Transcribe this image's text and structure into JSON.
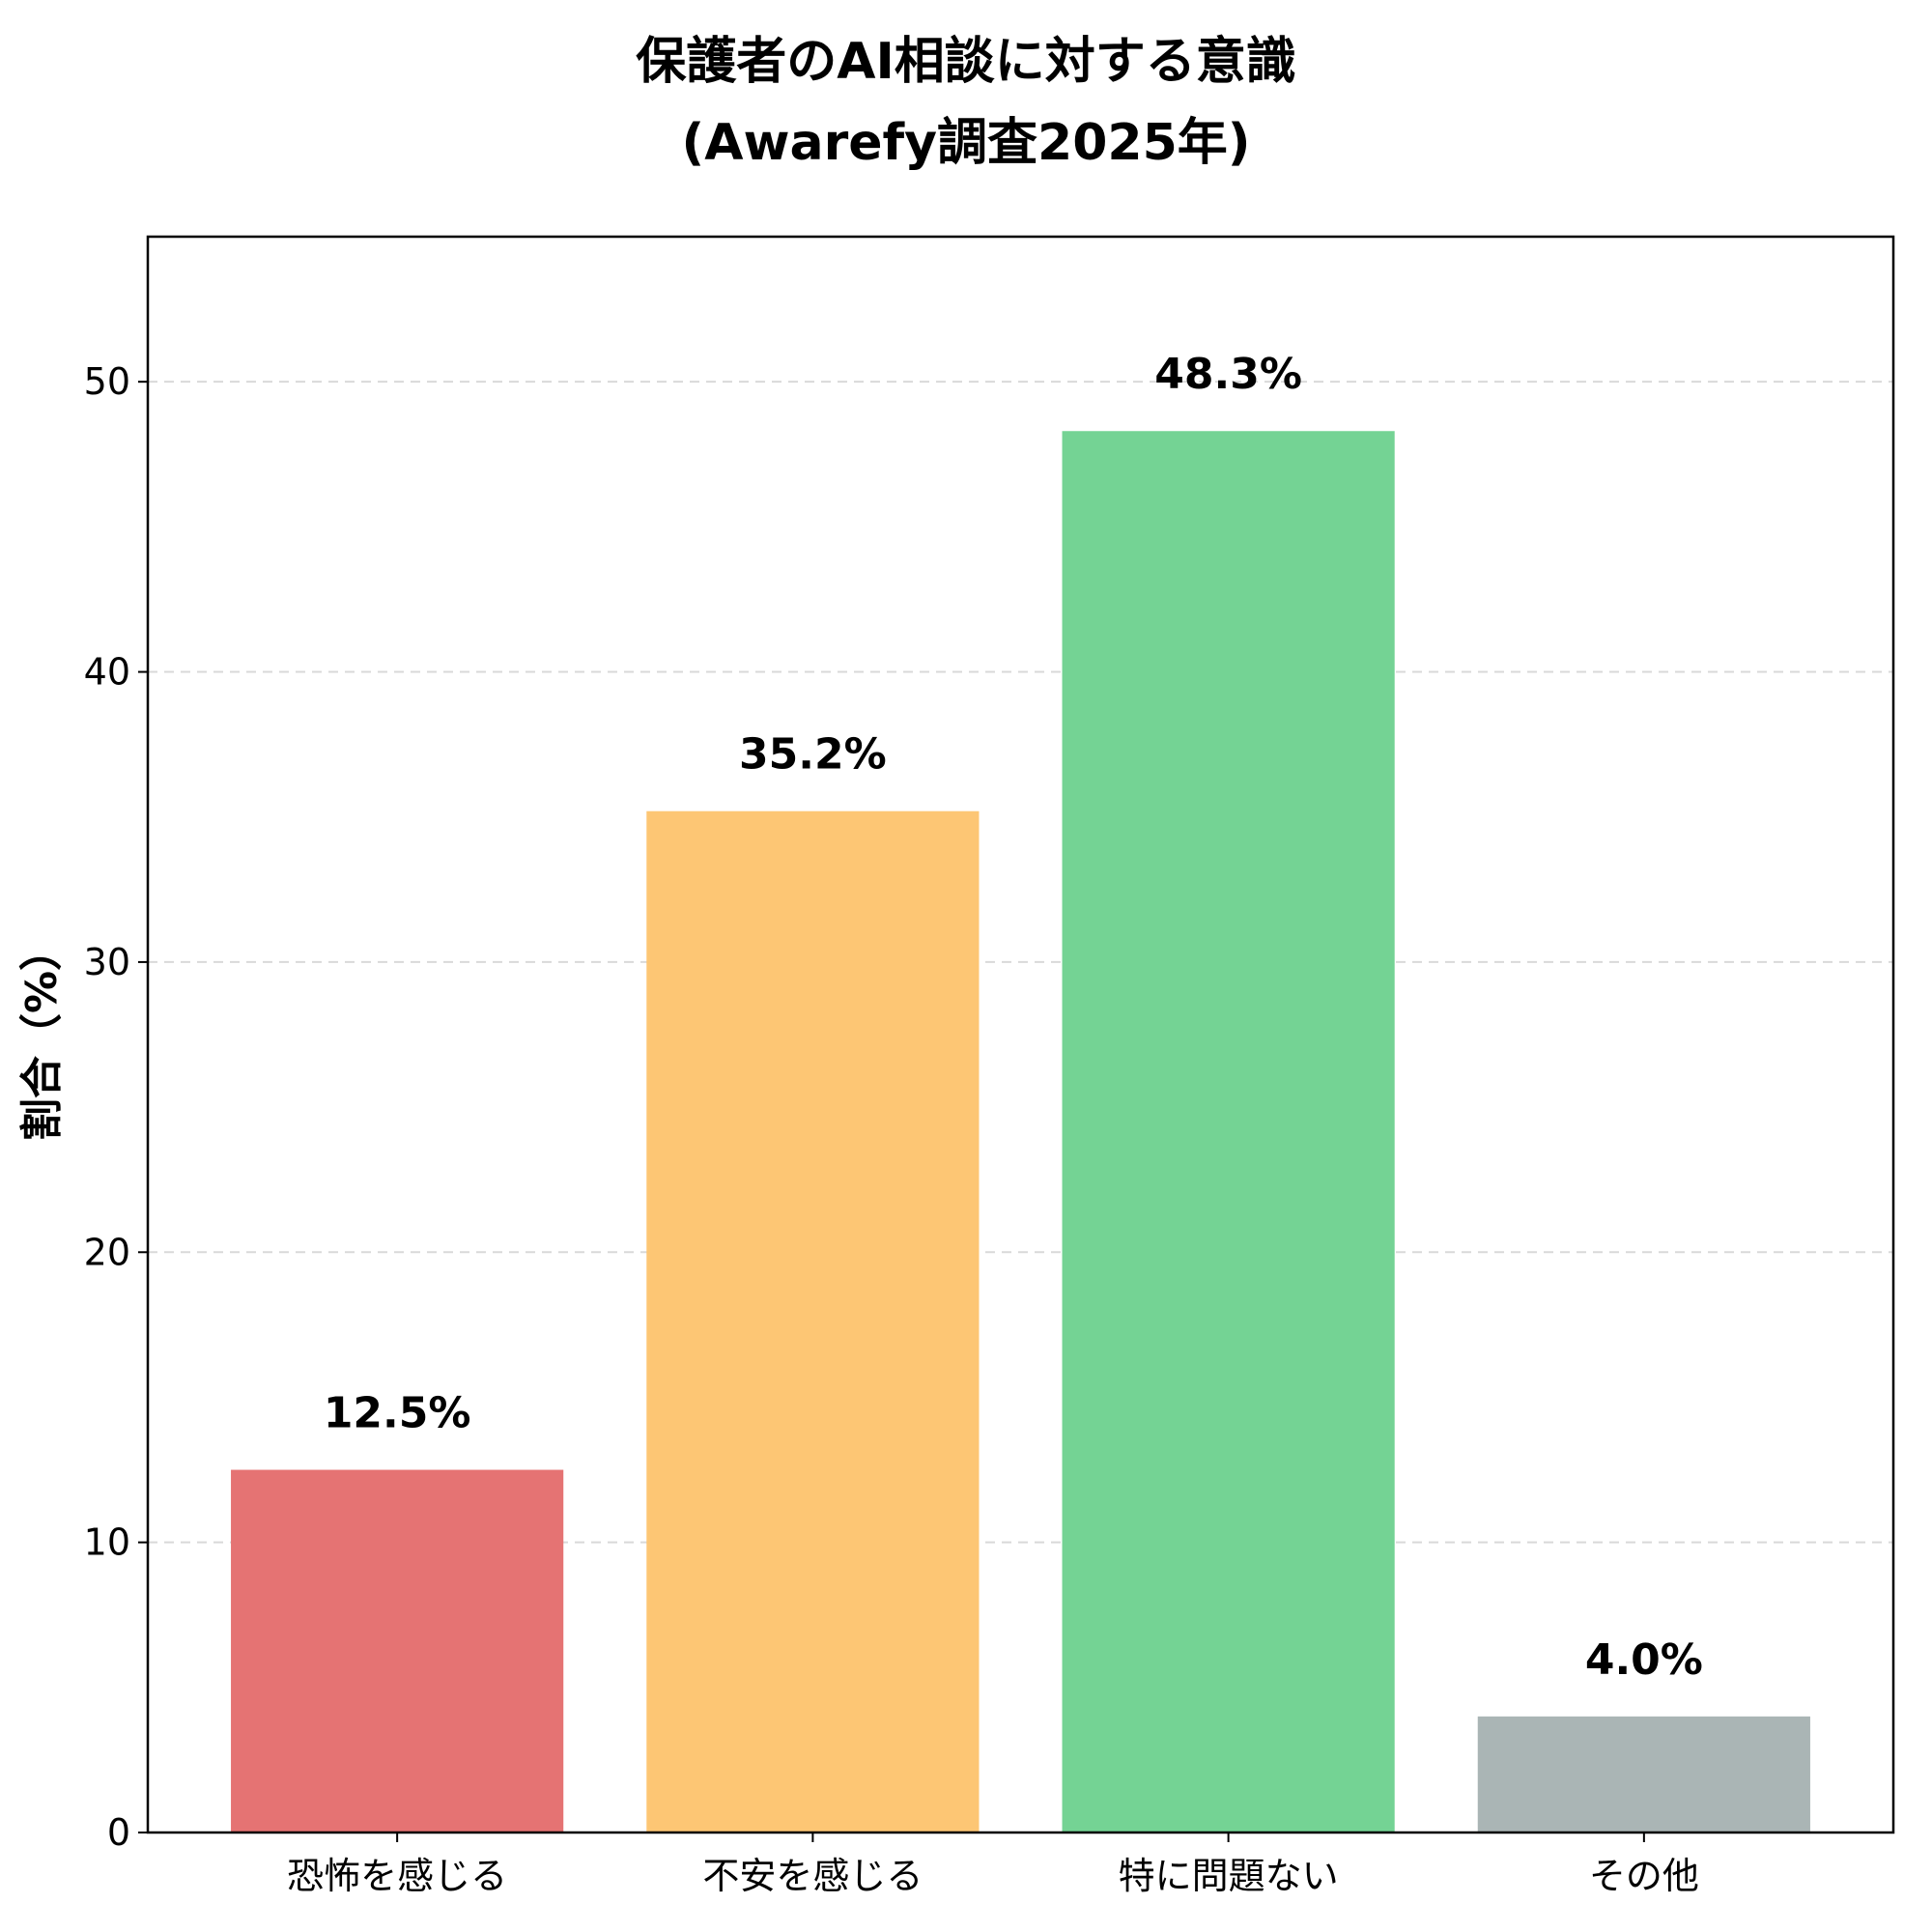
{
  "chart_data": {
    "type": "bar",
    "title_lines": [
      "保護者のAI相談に対する意識",
      "(Awarefy調査2025年)"
    ],
    "xlabel": "",
    "ylabel": "割合（%）",
    "categories": [
      "恐怖を感じる",
      "不安を感じる",
      "特に問題ない",
      "その他"
    ],
    "values": [
      12.5,
      35.2,
      48.3,
      4.0
    ],
    "value_labels": [
      "12.5%",
      "35.2%",
      "48.3%",
      "4.0%"
    ],
    "colors": [
      "#e57373",
      "#fdc674",
      "#74d394",
      "#aab5b5"
    ],
    "ylim": [
      0,
      55
    ],
    "yticks": [
      0,
      10,
      20,
      30,
      40,
      50
    ],
    "grid": "horizontal dashed",
    "legend": "none"
  }
}
